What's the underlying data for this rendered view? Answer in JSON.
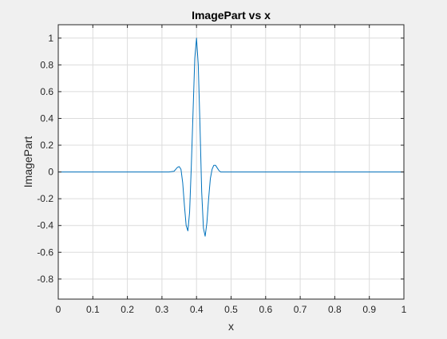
{
  "chart_data": {
    "type": "line",
    "title": "ImagePart vs x",
    "xlabel": "x",
    "ylabel": "ImagePart",
    "xlim": [
      0,
      1
    ],
    "ylim": [
      -0.95,
      1.1
    ],
    "xticks": [
      0,
      0.1,
      0.2,
      0.3,
      0.4,
      0.5,
      0.6,
      0.7,
      0.8,
      0.9,
      1
    ],
    "xtick_labels": [
      "0",
      "0.1",
      "0.2",
      "0.3",
      "0.4",
      "0.5",
      "0.6",
      "0.7",
      "0.8",
      "0.9",
      "1"
    ],
    "yticks": [
      1,
      0.8,
      0.6,
      0.4,
      0.2,
      0,
      -0.2,
      -0.4,
      -0.6,
      -0.8
    ],
    "ytick_labels": [
      "1",
      "0.8",
      "0.6",
      "0.4",
      "0.2",
      "0",
      "-0.2",
      "-0.4",
      "-0.6",
      "-0.8"
    ],
    "grid": true,
    "series": [
      {
        "color": "#0072bd",
        "x": [
          0,
          0.1,
          0.2,
          0.3,
          0.32,
          0.335,
          0.34,
          0.345,
          0.35,
          0.355,
          0.36,
          0.365,
          0.37,
          0.375,
          0.38,
          0.385,
          0.39,
          0.395,
          0.4,
          0.405,
          0.41,
          0.415,
          0.42,
          0.425,
          0.43,
          0.435,
          0.44,
          0.445,
          0.45,
          0.455,
          0.46,
          0.465,
          0.47,
          0.48,
          0.5,
          0.6,
          0.7,
          0.8,
          0.9,
          1
        ],
        "y": [
          0,
          0,
          0,
          0,
          0,
          0.005,
          0.02,
          0.035,
          0.04,
          0.02,
          -0.08,
          -0.25,
          -0.4,
          -0.44,
          -0.3,
          0.05,
          0.45,
          0.85,
          1.0,
          0.8,
          0.35,
          -0.15,
          -0.42,
          -0.48,
          -0.38,
          -0.2,
          -0.05,
          0.02,
          0.05,
          0.05,
          0.03,
          0.01,
          0.0,
          0,
          0,
          0,
          0,
          0,
          0,
          0
        ]
      }
    ]
  }
}
